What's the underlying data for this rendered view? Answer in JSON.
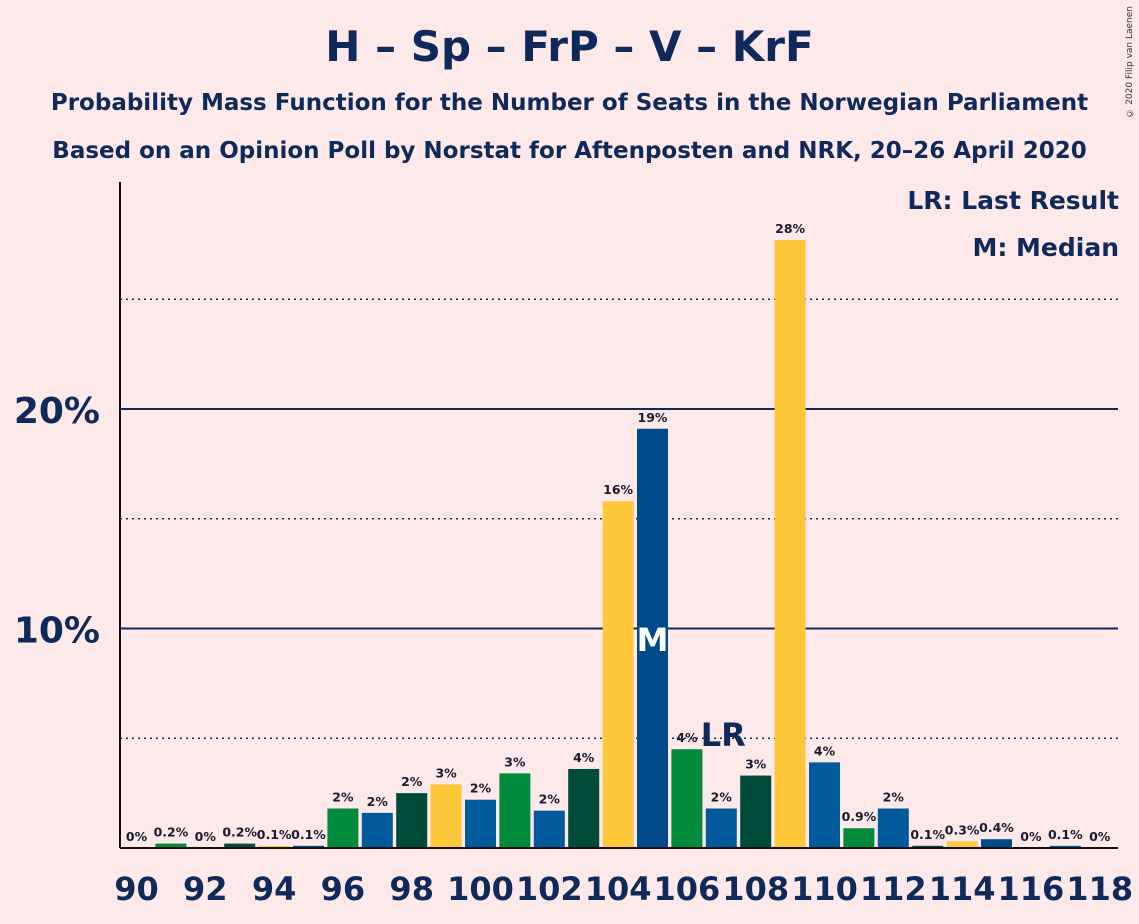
{
  "title": "H – Sp – FrP – V – KrF",
  "subtitle_1": "Probability Mass Function for the Number of Seats in the Norwegian Parliament",
  "subtitle_2": "Based on an Opinion Poll by Norstat for Aftenposten and NRK, 20–26 April 2020",
  "copyright": "© 2020 Filip van Laenen",
  "legend": {
    "last_result": "LR: Last Result",
    "median": "M: Median"
  },
  "colors": {
    "H": "#005a9c",
    "Sp": "#008a3c",
    "FrP": "#004a3a",
    "V": "#ffc83a",
    "KrF": "#004a8c",
    "background": "#fde8ea",
    "axis": "#0f2a5a"
  },
  "chart_data": {
    "type": "bar",
    "x": [
      90,
      91,
      92,
      93,
      94,
      95,
      96,
      97,
      98,
      99,
      100,
      101,
      102,
      103,
      104,
      105,
      106,
      107,
      108,
      109,
      110,
      111,
      112,
      113,
      114,
      115,
      116,
      117,
      118
    ],
    "values": [
      0,
      0.2,
      0,
      0.2,
      0.1,
      0.1,
      1.8,
      1.6,
      2.5,
      2.9,
      2.2,
      3.4,
      1.7,
      3.6,
      15.8,
      19.1,
      4.5,
      1.8,
      3.3,
      27.7,
      3.9,
      0.9,
      1.8,
      0.1,
      0.3,
      0.4,
      0,
      0.1,
      0
    ],
    "labels": [
      "0%",
      "0.2%",
      "0%",
      "0.2%",
      "0.1%",
      "0.1%",
      "2%",
      "2%",
      "2%",
      "3%",
      "2%",
      "3%",
      "2%",
      "4%",
      "16%",
      "19%",
      "4%",
      "2%",
      "3%",
      "28%",
      "4%",
      "0.9%",
      "2%",
      "0.1%",
      "0.3%",
      "0.4%",
      "0%",
      "0.1%",
      "0%"
    ],
    "bar_colors": [
      "#005a9c",
      "#008a3c",
      "#004a3a",
      "#004a3a",
      "#ffc83a",
      "#004a8c",
      "#008a3c",
      "#005a9c",
      "#004a3a",
      "#ffc83a",
      "#005a9c",
      "#008a3c",
      "#005a9c",
      "#004a3a",
      "#ffc83a",
      "#004a8c",
      "#008a3c",
      "#005a9c",
      "#004a3a",
      "#ffc83a",
      "#005a9c",
      "#008a3c",
      "#005a9c",
      "#004a3a",
      "#ffc83a",
      "#004a8c",
      "#008a3c",
      "#005a9c",
      "#004a3a"
    ],
    "x_tick_labels": [
      "90",
      "92",
      "94",
      "96",
      "98",
      "100",
      "102",
      "104",
      "106",
      "108",
      "110",
      "112",
      "114",
      "116",
      "118"
    ],
    "y_tick_labels": [
      "10%",
      "20%"
    ],
    "y_ticks": [
      10,
      20
    ],
    "ylim": [
      0,
      30
    ],
    "gridlines": [
      5,
      10,
      15,
      20,
      25
    ],
    "median": {
      "x": 105,
      "label": "M"
    },
    "last_result": {
      "x": 107,
      "label": "LR"
    }
  }
}
